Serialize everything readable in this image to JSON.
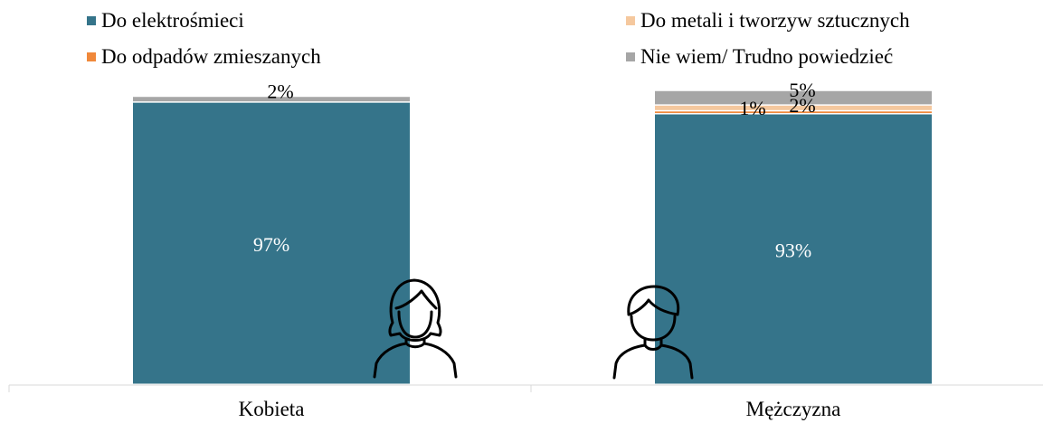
{
  "chart_data": {
    "type": "bar",
    "stacked": true,
    "categories": [
      "Kobieta",
      "Mężczyzna"
    ],
    "series": [
      {
        "name": "Do elektrośmieci",
        "color": "#35748a",
        "values": [
          97,
          93
        ],
        "labels": [
          "97%",
          "93%"
        ]
      },
      {
        "name": "Do odpadów zmieszanych",
        "color": "#f0883a",
        "values": [
          0,
          1
        ],
        "labels": [
          "",
          "1%"
        ]
      },
      {
        "name": "Do metali i tworzyw sztucznych",
        "color": "#f5c89e",
        "values": [
          0,
          2
        ],
        "labels": [
          "",
          "2%"
        ]
      },
      {
        "name": "Nie wiem/ Trudno powiedzieć",
        "color": "#a6a6a6",
        "values": [
          2,
          5
        ],
        "labels": [
          "2%",
          "5%"
        ]
      }
    ],
    "ylim": [
      0,
      100
    ],
    "legend_position": "top",
    "grid": false
  },
  "icons": [
    "woman-icon",
    "man-icon"
  ]
}
